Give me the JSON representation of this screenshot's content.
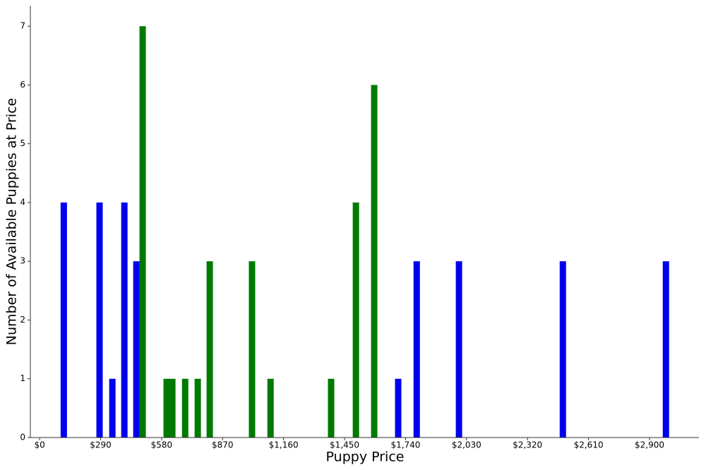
{
  "chart_data": {
    "type": "bar",
    "x_label": "Puppy Price",
    "y_label": "Number of Available Puppies at Price",
    "series": [
      {
        "color": "#0000ee",
        "x": [
          115,
          285,
          346,
          403,
          460,
          1705,
          1793,
          1994,
          2488,
          2978
        ],
        "values": [
          4,
          4,
          1,
          4,
          3,
          1,
          3,
          3,
          3,
          3
        ]
      },
      {
        "color": "#007a00",
        "x": [
          490,
          604,
          631,
          692,
          752,
          809,
          1010,
          1098,
          1386,
          1504,
          1591
        ],
        "values": [
          7,
          1,
          1,
          1,
          1,
          3,
          3,
          1,
          1,
          4,
          6
        ]
      }
    ],
    "xlim": [
      -44,
      3135
    ],
    "xticks": [
      {
        "value": 0,
        "label": "$0"
      },
      {
        "value": 290,
        "label": "$290"
      },
      {
        "value": 580,
        "label": "$580"
      },
      {
        "value": 870,
        "label": "$870"
      },
      {
        "value": 1160,
        "label": "$1,160"
      },
      {
        "value": 1450,
        "label": "$1,450"
      },
      {
        "value": 1740,
        "label": "$1,740"
      },
      {
        "value": 2030,
        "label": "$2,030"
      },
      {
        "value": 2320,
        "label": "$2,320"
      },
      {
        "value": 2610,
        "label": "$2,610"
      },
      {
        "value": 2900,
        "label": "$2,900"
      }
    ],
    "ylim": [
      0,
      7.35
    ],
    "yticks": [
      0,
      1,
      2,
      3,
      4,
      5,
      6,
      7
    ]
  }
}
